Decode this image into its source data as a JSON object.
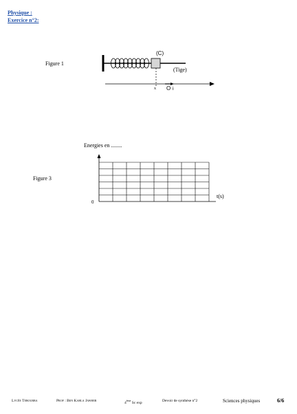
{
  "header": {
    "subject": "Physique :",
    "exercise": "Exercice n°2:"
  },
  "figure1": {
    "label": "Figure 1",
    "solid_label": "(C)",
    "rod_label": "(Tige)",
    "axis_label": "x",
    "origin_label": "O",
    "unit_vector_label": "i"
  },
  "figure3": {
    "label": "Figure 3",
    "y_title": "Energies en ........",
    "x_title": "t(s)",
    "origin_label": "0"
  },
  "footer": {
    "school": "Lycée Tebourba",
    "teacher": "Prof : Ben Kahla Jawher",
    "class_num": "4",
    "class_sup": "ème",
    "class_rest": "Sc exp",
    "exam": "Devoir de synthèse n°2",
    "subject": "Sciences physiques",
    "page": "6/6"
  },
  "colors": {
    "header": "#1f4fa8",
    "ink": "#000000"
  }
}
